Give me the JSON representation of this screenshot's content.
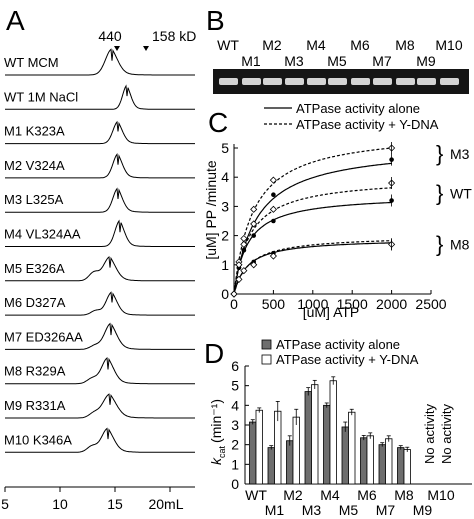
{
  "panel_labels": {
    "a": "A",
    "b": "B",
    "c": "C",
    "d": "D"
  },
  "panel_a": {
    "markers": [
      "440",
      "158 kD"
    ],
    "xticks": [
      "5",
      "10",
      "15",
      "20mL"
    ],
    "samples": [
      "WT MCM",
      "WT 1M NaCl",
      "M1 K323A",
      "M2 V324A",
      "M3 L325A",
      "M4 VL324AA",
      "M5 E326A",
      "M6 D327A",
      "M7 ED326AA",
      "M8 R329A",
      "M9 R331A",
      "M10 K346A"
    ]
  },
  "panel_b": {
    "top_labels": [
      "WT",
      "M2",
      "M4",
      "M6",
      "M8",
      "M10"
    ],
    "bottom_labels": [
      "M1",
      "M3",
      "M5",
      "M7",
      "M9"
    ]
  },
  "chart_data": [
    {
      "type": "line",
      "panel": "C",
      "xlabel": "[uM] ATP",
      "ylabel": "[uM] PP /minute",
      "xlim": [
        0,
        2500
      ],
      "ylim": [
        0,
        5
      ],
      "xticks": [
        "0",
        "500",
        "1000",
        "1500",
        "2000",
        "2500"
      ],
      "yticks": [
        "0",
        "1",
        "2",
        "3",
        "4",
        "5"
      ],
      "legend": [
        "ATPase activity alone",
        "ATPase activity + Y-DNA"
      ],
      "legend_position": "top",
      "group_labels": [
        "M3",
        "WT",
        "M8"
      ],
      "x": [
        0,
        62.5,
        125,
        250,
        500,
        2000
      ],
      "series": [
        {
          "group": "M3",
          "style": "solid",
          "vmax": 5.1,
          "km": 280,
          "points": [
            0,
            0.9,
            1.5,
            2.4,
            3.4,
            4.6
          ]
        },
        {
          "group": "M3",
          "style": "dotted",
          "vmax": 5.6,
          "km": 240,
          "points": [
            0,
            1.1,
            1.9,
            2.9,
            3.9,
            5.0
          ]
        },
        {
          "group": "WT",
          "style": "solid",
          "vmax": 3.4,
          "km": 170,
          "points": [
            0,
            0.9,
            1.5,
            2.0,
            2.5,
            3.2
          ]
        },
        {
          "group": "WT",
          "style": "dotted",
          "vmax": 4.0,
          "km": 200,
          "points": [
            0,
            1.0,
            1.7,
            2.4,
            2.9,
            3.8
          ]
        },
        {
          "group": "M8",
          "style": "solid",
          "vmax": 1.9,
          "km": 170,
          "points": [
            0,
            0.5,
            0.8,
            1.1,
            1.4,
            1.7
          ]
        },
        {
          "group": "M8",
          "style": "dotted",
          "vmax": 2.0,
          "km": 190,
          "points": [
            0,
            0.5,
            0.8,
            1.0,
            1.3,
            1.7
          ]
        }
      ]
    },
    {
      "type": "bar",
      "panel": "D",
      "ylabel_main": "k",
      "ylabel_sub": "cat",
      "ylabel_unit": "(min⁻¹)",
      "ylim": [
        0,
        6
      ],
      "yticks": [
        "0",
        "1",
        "2",
        "3",
        "4",
        "5",
        "6"
      ],
      "legend": [
        "ATPase activity alone",
        "ATPase activity + Y-DNA"
      ],
      "legend_position": "top",
      "xlabels_row1": [
        "WT",
        "M2",
        "M4",
        "M6",
        "M8",
        "M10"
      ],
      "xlabels_row2": [
        "M1",
        "M3",
        "M5",
        "M7",
        "M9"
      ],
      "categories": [
        "WT",
        "M1",
        "M2",
        "M3",
        "M4",
        "M5",
        "M6",
        "M7",
        "M8",
        "M9",
        "M10"
      ],
      "series": [
        {
          "name": "ATPase activity alone",
          "color": "#6e6e6e",
          "values": [
            3.15,
            1.85,
            2.2,
            4.7,
            4.0,
            2.9,
            2.35,
            2.0,
            1.85,
            null,
            null
          ],
          "errors": [
            0.12,
            0.1,
            0.25,
            0.2,
            0.12,
            0.25,
            0.12,
            0.1,
            0.1,
            null,
            null
          ]
        },
        {
          "name": "ATPase activity + Y-DNA",
          "color": "#ffffff",
          "values": [
            3.75,
            3.7,
            3.4,
            5.05,
            5.25,
            3.65,
            2.45,
            2.3,
            1.75,
            null,
            null
          ],
          "errors": [
            0.12,
            0.5,
            0.4,
            0.22,
            0.2,
            0.15,
            0.15,
            0.15,
            0.12,
            null,
            null
          ]
        }
      ],
      "annotations": [
        "No activity",
        "No activity"
      ]
    }
  ]
}
